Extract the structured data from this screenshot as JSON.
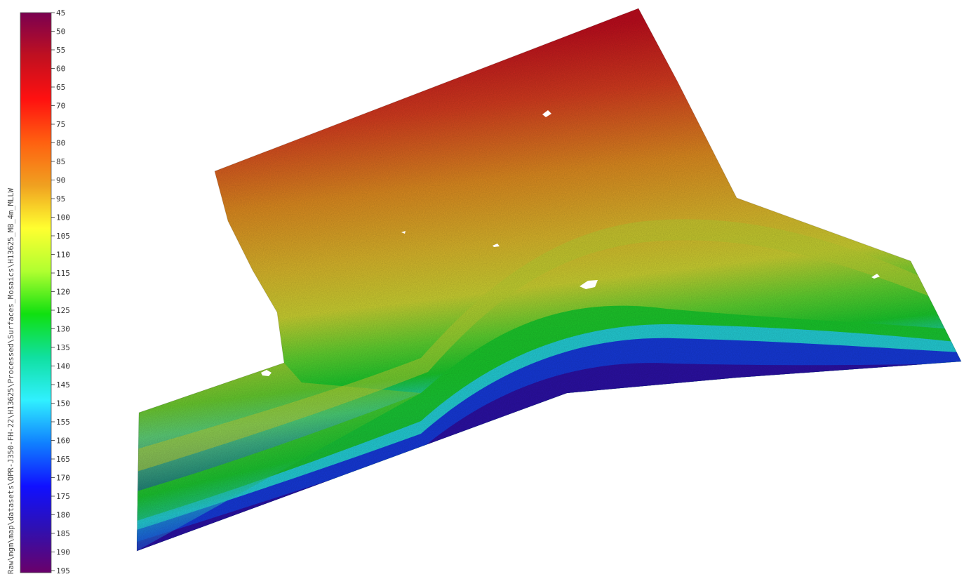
{
  "layer_path": "Raw\\mgm\\map\\datasets\\OPR-J350-FH-22\\H13625\\Processed\\Surfaces_Mosaics\\H13625_MB_4m_MLLW",
  "colorbar": {
    "ticks": [
      "45",
      "50",
      "55",
      "60",
      "65",
      "70",
      "75",
      "80",
      "85",
      "90",
      "95",
      "100",
      "105",
      "110",
      "115",
      "120",
      "125",
      "130",
      "135",
      "140",
      "145",
      "150",
      "155",
      "160",
      "165",
      "170",
      "175",
      "180",
      "185",
      "190",
      "195"
    ],
    "min": 45,
    "max": 195,
    "colormap": [
      "#7a0050",
      "#c01020",
      "#ff1010",
      "#ff6010",
      "#f0a020",
      "#ffff30",
      "#b0ff30",
      "#10e010",
      "#10e0a0",
      "#30f0ff",
      "#1080ff",
      "#1010ff",
      "#3010b0",
      "#6a006a"
    ]
  },
  "surface_colors": {
    "shallow": "#c4161c",
    "mid_shallow": "#dd8a24",
    "mid": "#d4c030",
    "mid_deep": "#22c830",
    "deep_cyan": "#22c8e8",
    "deeper": "#1540d8",
    "deepest": "#3a0a8a"
  }
}
